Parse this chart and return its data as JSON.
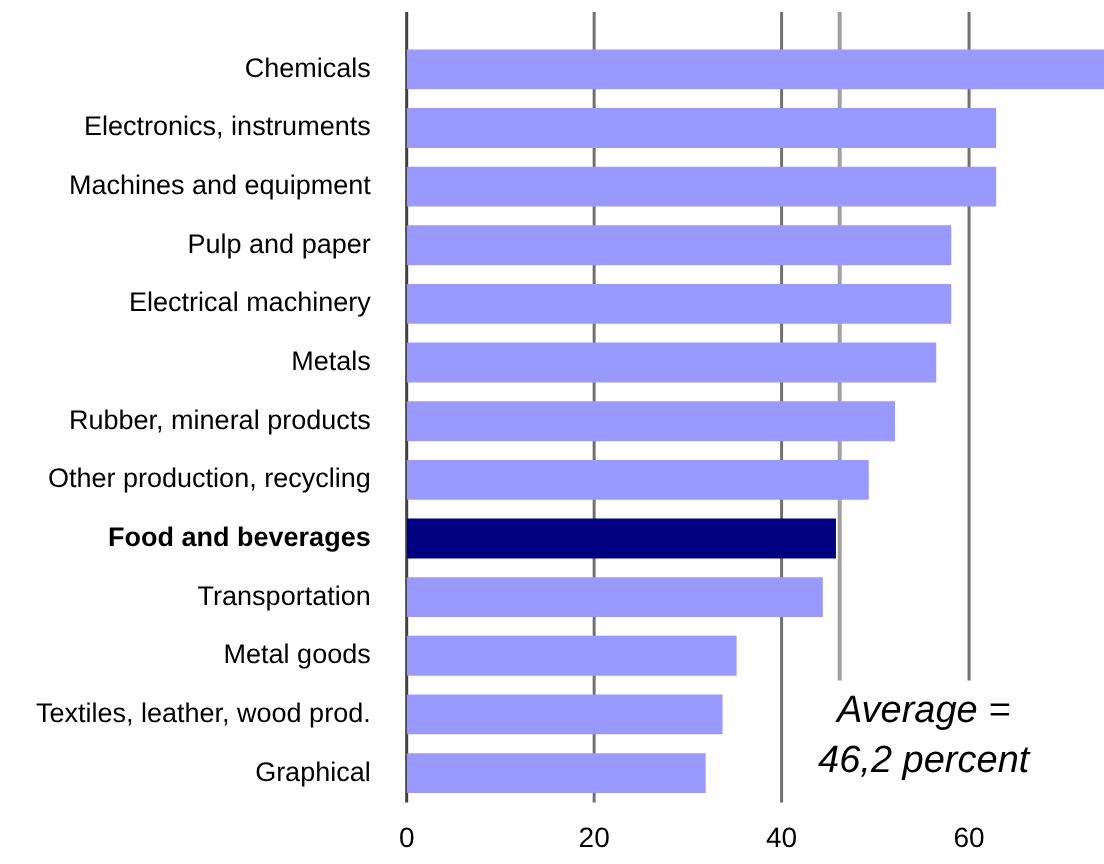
{
  "chart_data": {
    "type": "bar",
    "orientation": "horizontal",
    "categories": [
      "Chemicals",
      "Electronics, instruments",
      "Machines and equipment",
      "Pulp and paper",
      "Electrical machinery",
      "Metals",
      "Rubber, mineral products",
      "Other production, recycling",
      "Food and beverages",
      "Transportation",
      "Metal goods",
      "Textiles, leather, wood prod.",
      "Graphical"
    ],
    "values": [
      74.4,
      62.9,
      62.9,
      58.1,
      58.1,
      56.5,
      52.1,
      49.3,
      45.8,
      44.4,
      35.2,
      33.7,
      31.9
    ],
    "colors": [
      "#9999ff",
      "#9999ff",
      "#9999ff",
      "#9999ff",
      "#9999ff",
      "#9999ff",
      "#9999ff",
      "#9999ff",
      "#000080",
      "#9999ff",
      "#9999ff",
      "#9999ff",
      "#9999ff"
    ],
    "xlim": [
      0,
      74.4
    ],
    "xticks": [
      0,
      20,
      40,
      60
    ],
    "grid": "x",
    "legend": false,
    "ref_lines": [
      {
        "axis": "x",
        "value": 46.2,
        "label": "Average = 46,2 percent",
        "color": "#a0a0a0"
      }
    ]
  }
}
